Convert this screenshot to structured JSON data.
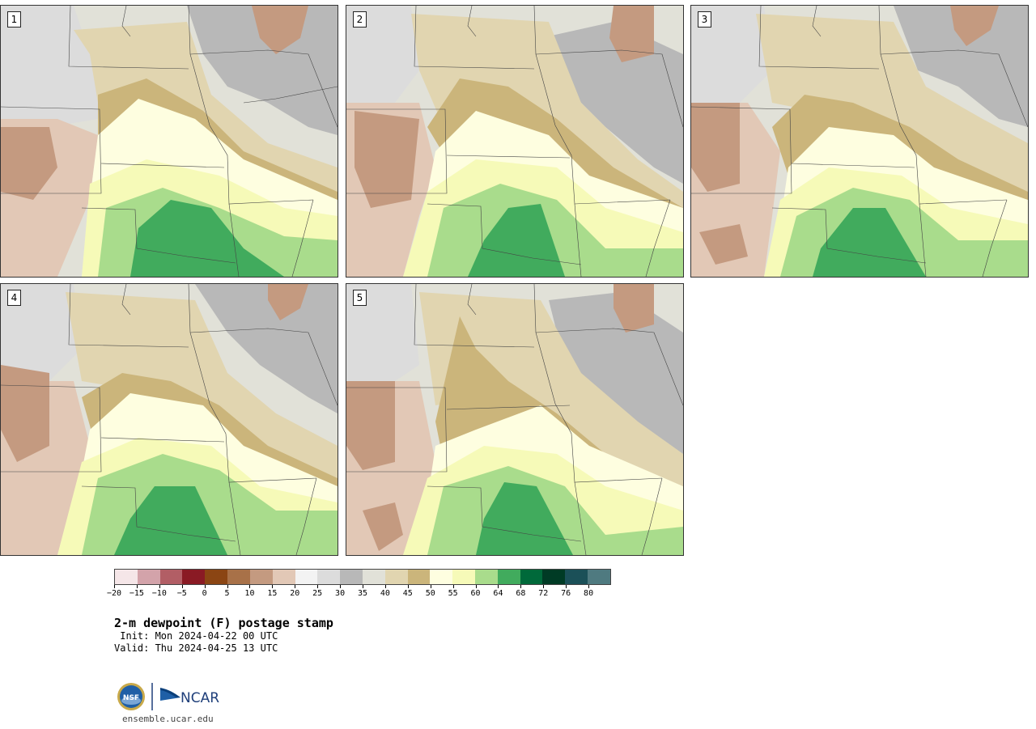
{
  "panels": [
    {
      "label": "1"
    },
    {
      "label": "2"
    },
    {
      "label": "3"
    },
    {
      "label": "4"
    },
    {
      "label": "5"
    }
  ],
  "colorbar": {
    "colors": [
      "#f5e6e8",
      "#d3a3aa",
      "#b25e65",
      "#8a1a24",
      "#8b4513",
      "#a87148",
      "#c49a80",
      "#e2c8b6",
      "#f3f3f3",
      "#dcdcdc",
      "#b8b8b8",
      "#e1e1d8",
      "#e1d5b0",
      "#cbb57b",
      "#fefee0",
      "#f6fab8",
      "#a9dc8c",
      "#41ab5d",
      "#00693a",
      "#003b25",
      "#1b5058",
      "#4f7a80"
    ],
    "tick_labels": [
      "−20",
      "−15",
      "−10",
      "−5",
      "0",
      "5",
      "10",
      "15",
      "20",
      "25",
      "30",
      "35",
      "40",
      "45",
      "50",
      "55",
      "60",
      "64",
      "68",
      "72",
      "76",
      "80"
    ]
  },
  "title": "2-m dewpoint (F) postage stamp",
  "init": " Init: Mon 2024-04-22 00 UTC",
  "valid": "Valid: Thu 2024-04-25 13 UTC",
  "logos": {
    "nsf": "NSF",
    "ncar": "NCAR"
  },
  "website": "ensemble.ucar.edu"
}
